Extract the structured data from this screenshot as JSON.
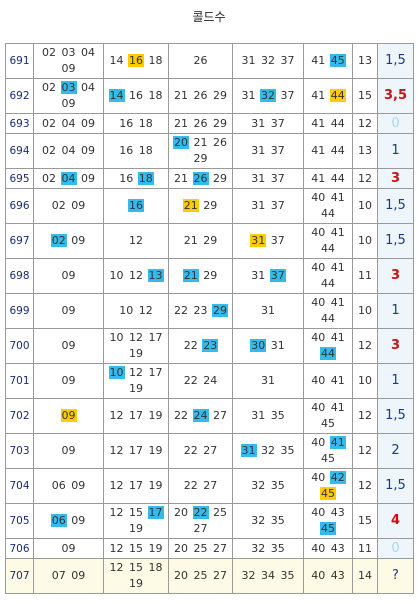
{
  "title": "콜드수",
  "table": {
    "highlight_colors": {
      "blue": "#33bbee",
      "yellow": "#ffcc00"
    },
    "result_colors": {
      "normal": "#1a3a8a",
      "red": "#cc1111",
      "light": "#a8d8ee"
    },
    "rows": [
      {
        "round": "691",
        "groups": [
          [
            "02",
            "03",
            "04",
            "09"
          ],
          [
            "14",
            {
              "t": "16",
              "c": "yellow"
            },
            "18"
          ],
          [
            "26"
          ],
          [
            "31",
            "32",
            "37"
          ],
          [
            "41",
            {
              "t": "45",
              "c": "blue"
            }
          ]
        ],
        "count": "13",
        "result": "1,5",
        "result_color": "normal"
      },
      {
        "round": "692",
        "groups": [
          [
            "02",
            {
              "t": "03",
              "c": "blue"
            },
            "04",
            "09"
          ],
          [
            {
              "t": "14",
              "c": "blue"
            },
            "16",
            "18"
          ],
          [
            "21",
            "26",
            "29"
          ],
          [
            "31",
            {
              "t": "32",
              "c": "blue"
            },
            "37"
          ],
          [
            "41",
            {
              "t": "44",
              "c": "yellow"
            }
          ]
        ],
        "count": "15",
        "result": "3,5",
        "result_color": "red"
      },
      {
        "round": "693",
        "groups": [
          [
            "02",
            "04",
            "09"
          ],
          [
            "16",
            "18"
          ],
          [
            "21",
            "26",
            "29"
          ],
          [
            "31",
            "37"
          ],
          [
            "41",
            "44"
          ]
        ],
        "count": "12",
        "result": "0",
        "result_color": "light"
      },
      {
        "round": "694",
        "groups": [
          [
            "02",
            "04",
            "09"
          ],
          [
            "16",
            "18"
          ],
          [
            {
              "t": "20",
              "c": "blue"
            },
            "21",
            "26",
            "29"
          ],
          [
            "31",
            "37"
          ],
          [
            "41",
            "44"
          ]
        ],
        "count": "13",
        "result": "1",
        "result_color": "normal"
      },
      {
        "round": "695",
        "groups": [
          [
            "02",
            {
              "t": "04",
              "c": "blue"
            },
            "09"
          ],
          [
            "16",
            {
              "t": "18",
              "c": "blue"
            }
          ],
          [
            "21",
            {
              "t": "26",
              "c": "blue"
            },
            "29"
          ],
          [
            "31",
            "37"
          ],
          [
            "41",
            "44"
          ]
        ],
        "count": "12",
        "result": "3",
        "result_color": "red"
      },
      {
        "round": "696",
        "groups": [
          [
            "02",
            "09"
          ],
          [
            {
              "t": "16",
              "c": "blue"
            }
          ],
          [
            {
              "t": "21",
              "c": "yellow"
            },
            "29"
          ],
          [
            "31",
            "37"
          ],
          [
            "40",
            "41",
            "44"
          ]
        ],
        "count": "10",
        "result": "1,5",
        "result_color": "normal"
      },
      {
        "round": "697",
        "groups": [
          [
            {
              "t": "02",
              "c": "blue"
            },
            "09"
          ],
          [
            "12"
          ],
          [
            "21",
            "29"
          ],
          [
            {
              "t": "31",
              "c": "yellow"
            },
            "37"
          ],
          [
            "40",
            "41",
            "44"
          ]
        ],
        "count": "10",
        "result": "1,5",
        "result_color": "normal"
      },
      {
        "round": "698",
        "groups": [
          [
            "09"
          ],
          [
            "10",
            "12",
            {
              "t": "13",
              "c": "blue"
            }
          ],
          [
            {
              "t": "21",
              "c": "blue"
            },
            "29"
          ],
          [
            "31",
            {
              "t": "37",
              "c": "blue"
            }
          ],
          [
            "40",
            "41",
            "44"
          ]
        ],
        "count": "11",
        "result": "3",
        "result_color": "red"
      },
      {
        "round": "699",
        "groups": [
          [
            "09"
          ],
          [
            "10",
            "12"
          ],
          [
            "22",
            "23",
            {
              "t": "29",
              "c": "blue"
            }
          ],
          [
            "31"
          ],
          [
            "40",
            "41",
            "44"
          ]
        ],
        "count": "10",
        "result": "1",
        "result_color": "normal"
      },
      {
        "round": "700",
        "groups": [
          [
            "09"
          ],
          [
            "10",
            "12",
            "17",
            "19"
          ],
          [
            "22",
            {
              "t": "23",
              "c": "blue"
            }
          ],
          [
            {
              "t": "30",
              "c": "blue"
            },
            "31"
          ],
          [
            "40",
            "41",
            {
              "t": "44",
              "c": "blue"
            }
          ]
        ],
        "count": "12",
        "result": "3",
        "result_color": "red"
      },
      {
        "round": "701",
        "groups": [
          [
            "09"
          ],
          [
            {
              "t": "10",
              "c": "blue"
            },
            "12",
            "17",
            "19"
          ],
          [
            "22",
            "24"
          ],
          [
            "31"
          ],
          [
            "40",
            "41"
          ]
        ],
        "count": "10",
        "result": "1",
        "result_color": "normal"
      },
      {
        "round": "702",
        "groups": [
          [
            {
              "t": "09",
              "c": "yellow"
            }
          ],
          [
            "12",
            "17",
            "19"
          ],
          [
            "22",
            {
              "t": "24",
              "c": "blue"
            },
            "27"
          ],
          [
            "31",
            "35"
          ],
          [
            "40",
            "41",
            "45"
          ]
        ],
        "count": "12",
        "result": "1,5",
        "result_color": "normal"
      },
      {
        "round": "703",
        "groups": [
          [
            "09"
          ],
          [
            "12",
            "17",
            "19"
          ],
          [
            "22",
            "27"
          ],
          [
            {
              "t": "31",
              "c": "blue"
            },
            "32",
            "35"
          ],
          [
            "40",
            {
              "t": "41",
              "c": "blue"
            },
            "45"
          ]
        ],
        "count": "12",
        "result": "2",
        "result_color": "normal"
      },
      {
        "round": "704",
        "groups": [
          [
            "06",
            "09"
          ],
          [
            "12",
            "17",
            "19"
          ],
          [
            "22",
            "27"
          ],
          [
            "32",
            "35"
          ],
          [
            "40",
            {
              "t": "42",
              "c": "blue"
            },
            {
              "t": "45",
              "c": "yellow"
            }
          ]
        ],
        "count": "12",
        "result": "1,5",
        "result_color": "normal"
      },
      {
        "round": "705",
        "groups": [
          [
            {
              "t": "06",
              "c": "blue"
            },
            "09"
          ],
          [
            "12",
            "15",
            {
              "t": "17",
              "c": "blue"
            },
            "19"
          ],
          [
            "20",
            {
              "t": "22",
              "c": "blue"
            },
            "25",
            "27"
          ],
          [
            "32",
            "35"
          ],
          [
            "40",
            "43",
            {
              "t": "45",
              "c": "blue"
            }
          ]
        ],
        "count": "15",
        "result": "4",
        "result_color": "red"
      },
      {
        "round": "706",
        "groups": [
          [
            "09"
          ],
          [
            "12",
            "15",
            "19"
          ],
          [
            "20",
            "25",
            "27"
          ],
          [
            "32",
            "35"
          ],
          [
            "40",
            "43"
          ]
        ],
        "count": "11",
        "result": "0",
        "result_color": "light"
      },
      {
        "round": "707",
        "groups": [
          [
            "07",
            "09"
          ],
          [
            "12",
            "15",
            "18",
            "19"
          ],
          [
            "20",
            "25",
            "27"
          ],
          [
            "32",
            "34",
            "35"
          ],
          [
            "40",
            "43"
          ]
        ],
        "count": "14",
        "result": "?",
        "result_color": "normal"
      }
    ]
  }
}
